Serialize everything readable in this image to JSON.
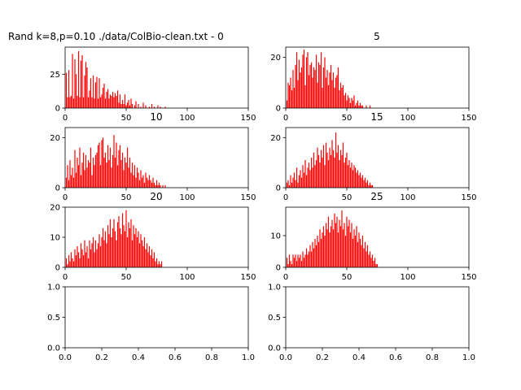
{
  "figure": {
    "bar_color": "#ff0000",
    "frame_color": "#000000",
    "background": "#ffffff"
  },
  "chart_data": [
    {
      "type": "bar",
      "title": "Rand k=8,p=0.10 ./data/ColBio-clean.txt - 0",
      "xlim": [
        0,
        150
      ],
      "ylim": [
        0,
        45
      ],
      "xticks": [
        "0",
        "50",
        "100",
        "150"
      ],
      "yticks": [
        "0",
        "25"
      ],
      "ytick_values": [
        0,
        25
      ],
      "x_start": 1,
      "values": [
        26,
        8,
        28,
        8,
        9,
        40,
        7,
        36,
        25,
        9,
        42,
        8,
        35,
        39,
        8,
        24,
        34,
        30,
        8,
        13,
        22,
        8,
        24,
        7,
        19,
        23,
        7,
        22,
        8,
        10,
        15,
        18,
        7,
        12,
        14,
        7,
        10,
        9,
        12,
        8,
        11,
        9,
        13,
        4,
        10,
        3,
        6,
        3,
        10,
        2,
        4,
        6,
        2,
        7,
        3,
        0,
        2,
        5,
        0,
        3,
        0,
        1,
        0,
        4,
        0,
        2,
        0,
        0,
        1,
        0,
        3,
        0,
        1,
        0,
        0,
        2,
        0,
        1,
        0,
        0,
        0,
        1
      ]
    },
    {
      "type": "bar",
      "title": "5",
      "xlim": [
        0,
        150
      ],
      "ylim": [
        0,
        24
      ],
      "xticks": [
        "0",
        "50",
        "100",
        "150"
      ],
      "yticks": [
        "0",
        "20"
      ],
      "ytick_values": [
        0,
        20
      ],
      "x_start": 1,
      "values": [
        3,
        10,
        9,
        12,
        7,
        15,
        8,
        17,
        22,
        11,
        19,
        14,
        16,
        21,
        23,
        9,
        20,
        22,
        13,
        17,
        18,
        12,
        16,
        15,
        21,
        10,
        18,
        17,
        22,
        8,
        16,
        20,
        12,
        15,
        9,
        14,
        17,
        11,
        14,
        8,
        12,
        13,
        16,
        7,
        10,
        8,
        9,
        5,
        6,
        3,
        5,
        4,
        2,
        4,
        3,
        5,
        1,
        2,
        3,
        1,
        2,
        1,
        1,
        0,
        0,
        1,
        0,
        0,
        1
      ]
    },
    {
      "type": "bar",
      "title": "10",
      "xlim": [
        0,
        150
      ],
      "ylim": [
        0,
        24
      ],
      "xticks": [
        "0",
        "50",
        "100",
        "150"
      ],
      "yticks": [
        "0",
        "20"
      ],
      "ytick_values": [
        0,
        20
      ],
      "x_start": 1,
      "values": [
        4,
        9,
        3,
        11,
        5,
        8,
        4,
        15,
        6,
        12,
        9,
        16,
        5,
        10,
        14,
        7,
        13,
        8,
        11,
        10,
        16,
        5,
        12,
        9,
        13,
        14,
        17,
        18,
        9,
        19,
        20,
        12,
        14,
        10,
        17,
        11,
        16,
        8,
        13,
        21,
        12,
        18,
        9,
        15,
        17,
        11,
        14,
        7,
        12,
        10,
        16,
        8,
        12,
        6,
        10,
        5,
        9,
        4,
        8,
        6,
        3,
        7,
        4,
        5,
        2,
        6,
        4,
        3,
        5,
        3,
        2,
        4,
        2,
        1,
        3,
        1,
        2,
        1,
        0,
        1,
        0,
        1
      ]
    },
    {
      "type": "bar",
      "title": "15",
      "xlim": [
        0,
        150
      ],
      "ylim": [
        0,
        24
      ],
      "xticks": [
        "0",
        "50",
        "100",
        "150"
      ],
      "yticks": [
        "0",
        "20"
      ],
      "ytick_values": [
        0,
        20
      ],
      "x_start": 1,
      "values": [
        2,
        3,
        1,
        5,
        2,
        4,
        6,
        3,
        8,
        2,
        5,
        7,
        4,
        9,
        6,
        11,
        5,
        8,
        10,
        7,
        12,
        8,
        14,
        9,
        11,
        16,
        13,
        10,
        15,
        12,
        17,
        9,
        18,
        14,
        11,
        16,
        13,
        19,
        15,
        12,
        22,
        14,
        17,
        11,
        15,
        13,
        18,
        10,
        12,
        14,
        9,
        11,
        8,
        10,
        7,
        9,
        8,
        6,
        7,
        5,
        6,
        4,
        5,
        3,
        4,
        2,
        3,
        1,
        2,
        1,
        1
      ]
    },
    {
      "type": "bar",
      "title": "20",
      "xlim": [
        0,
        150
      ],
      "ylim": [
        0,
        20
      ],
      "xticks": [
        "0",
        "50",
        "100",
        "150"
      ],
      "yticks": [
        "0",
        "10",
        "20"
      ],
      "ytick_values": [
        0,
        10,
        20
      ],
      "x_start": 1,
      "values": [
        3,
        1,
        4,
        2,
        5,
        3,
        2,
        6,
        4,
        7,
        5,
        3,
        8,
        6,
        4,
        9,
        5,
        7,
        3,
        9,
        6,
        8,
        10,
        5,
        9,
        6,
        8,
        11,
        7,
        10,
        13,
        9,
        12,
        8,
        14,
        11,
        16,
        10,
        13,
        16,
        12,
        9,
        15,
        17,
        13,
        11,
        18,
        14,
        12,
        19,
        10,
        15,
        13,
        16,
        9,
        14,
        11,
        13,
        10,
        12,
        8,
        11,
        9,
        7,
        10,
        6,
        8,
        5,
        7,
        4,
        6,
        3,
        5,
        2,
        3,
        1,
        2,
        1,
        2
      ]
    },
    {
      "type": "bar",
      "title": "25",
      "xlim": [
        0,
        150
      ],
      "ylim": [
        0,
        19
      ],
      "xticks": [
        "0",
        "50",
        "100",
        "150"
      ],
      "yticks": [
        "0",
        "10"
      ],
      "ytick_values": [
        0,
        10
      ],
      "x_start": 1,
      "values": [
        3,
        1,
        4,
        2,
        1,
        4,
        3,
        4,
        2,
        4,
        3,
        4,
        2,
        5,
        3,
        4,
        6,
        4,
        5,
        7,
        5,
        8,
        6,
        9,
        7,
        10,
        8,
        12,
        9,
        11,
        13,
        10,
        14,
        12,
        16,
        11,
        13,
        15,
        12,
        17,
        14,
        16,
        11,
        15,
        13,
        18,
        12,
        14,
        10,
        16,
        13,
        15,
        11,
        14,
        9,
        12,
        10,
        13,
        8,
        11,
        9,
        7,
        10,
        6,
        8,
        5,
        7,
        4,
        5,
        3,
        4,
        2,
        3,
        1,
        1
      ]
    },
    {
      "type": "empty",
      "xlim": [
        0,
        1
      ],
      "ylim": [
        0,
        1
      ],
      "xticks": [
        "0.0",
        "0.2",
        "0.4",
        "0.6",
        "0.8",
        "1.0"
      ],
      "yticks": [
        "0.0",
        "0.5",
        "1.0"
      ],
      "ytick_values": [
        0,
        0.5,
        1
      ]
    },
    {
      "type": "empty",
      "xlim": [
        0,
        1
      ],
      "ylim": [
        0,
        1
      ],
      "xticks": [
        "0.0",
        "0.2",
        "0.4",
        "0.6",
        "0.8",
        "1.0"
      ],
      "yticks": [
        "0.0",
        "0.5",
        "1.0"
      ],
      "ytick_values": [
        0,
        0.5,
        1
      ]
    }
  ]
}
